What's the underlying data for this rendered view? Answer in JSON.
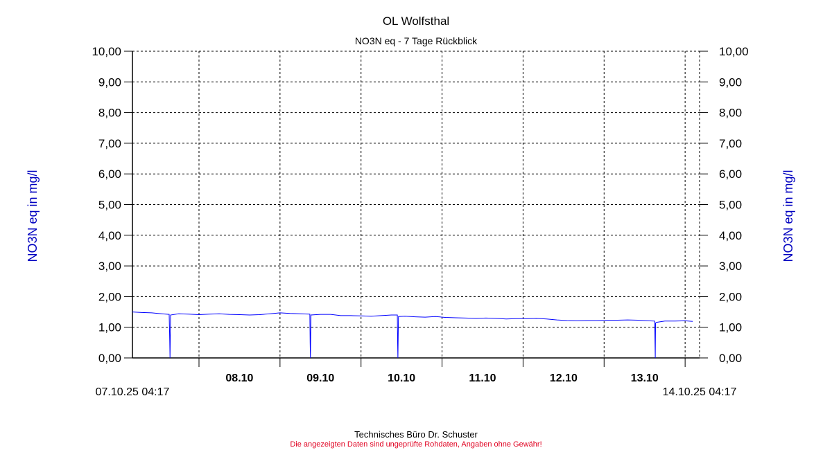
{
  "chart_data": {
    "type": "line",
    "title": "OL Wolfsthal",
    "subtitle": "NO3N eq - 7 Tage Rückblick",
    "ylabel_left": "NO3N eq in mg/l",
    "ylabel_right": "NO3N eq in mg/l",
    "ylim": [
      0,
      10
    ],
    "yticks": [
      "0,00",
      "1,00",
      "2,00",
      "3,00",
      "4,00",
      "5,00",
      "6,00",
      "7,00",
      "8,00",
      "9,00",
      "10,00"
    ],
    "xlim": [
      "2025-10-07T04:17",
      "2025-10-14T04:17"
    ],
    "xlim_labels": [
      "07.10.25 04:17",
      "14.10.25 04:17"
    ],
    "xticks": [
      "08.10",
      "09.10",
      "10.10",
      "11.10",
      "12.10",
      "13.10"
    ],
    "grid": true,
    "line_color": "#0000ff",
    "series": [
      {
        "points": [
          [
            "2025-10-07T04:17",
            1.5
          ],
          [
            "2025-10-07T07:00",
            1.48
          ],
          [
            "2025-10-07T10:00",
            1.47
          ],
          [
            "2025-10-07T13:00",
            1.44
          ],
          [
            "2025-10-07T15:10",
            1.42
          ],
          [
            "2025-10-07T15:20",
            0.55
          ],
          [
            "2025-10-07T15:25",
            0.0
          ],
          [
            "2025-10-07T15:35",
            1.4
          ],
          [
            "2025-10-07T18:00",
            1.44
          ],
          [
            "2025-10-07T21:00",
            1.43
          ],
          [
            "2025-10-08T00:00",
            1.41
          ],
          [
            "2025-10-08T03:00",
            1.43
          ],
          [
            "2025-10-08T06:00",
            1.44
          ],
          [
            "2025-10-08T09:00",
            1.42
          ],
          [
            "2025-10-08T12:00",
            1.41
          ],
          [
            "2025-10-08T15:00",
            1.4
          ],
          [
            "2025-10-08T18:00",
            1.41
          ],
          [
            "2025-10-08T21:00",
            1.44
          ],
          [
            "2025-10-09T00:00",
            1.47
          ],
          [
            "2025-10-09T03:00",
            1.45
          ],
          [
            "2025-10-09T06:00",
            1.44
          ],
          [
            "2025-10-09T08:50",
            1.43
          ],
          [
            "2025-10-09T08:55",
            0.5
          ],
          [
            "2025-10-09T09:00",
            0.0
          ],
          [
            "2025-10-09T09:10",
            1.4
          ],
          [
            "2025-10-09T12:00",
            1.42
          ],
          [
            "2025-10-09T15:00",
            1.42
          ],
          [
            "2025-10-09T18:00",
            1.38
          ],
          [
            "2025-10-09T21:00",
            1.38
          ],
          [
            "2025-10-10T00:00",
            1.37
          ],
          [
            "2025-10-10T03:00",
            1.36
          ],
          [
            "2025-10-10T06:00",
            1.38
          ],
          [
            "2025-10-10T09:00",
            1.4
          ],
          [
            "2025-10-10T10:45",
            1.4
          ],
          [
            "2025-10-10T10:50",
            0.5
          ],
          [
            "2025-10-10T10:55",
            0.0
          ],
          [
            "2025-10-10T11:05",
            1.35
          ],
          [
            "2025-10-10T13:00",
            1.36
          ],
          [
            "2025-10-10T16:00",
            1.34
          ],
          [
            "2025-10-10T19:00",
            1.33
          ],
          [
            "2025-10-10T22:00",
            1.35
          ],
          [
            "2025-10-11T01:00",
            1.32
          ],
          [
            "2025-10-11T04:00",
            1.31
          ],
          [
            "2025-10-11T07:00",
            1.3
          ],
          [
            "2025-10-11T10:00",
            1.29
          ],
          [
            "2025-10-11T13:00",
            1.3
          ],
          [
            "2025-10-11T16:00",
            1.29
          ],
          [
            "2025-10-11T19:00",
            1.27
          ],
          [
            "2025-10-11T22:00",
            1.28
          ],
          [
            "2025-10-12T01:00",
            1.28
          ],
          [
            "2025-10-12T04:00",
            1.29
          ],
          [
            "2025-10-12T07:00",
            1.27
          ],
          [
            "2025-10-12T10:00",
            1.24
          ],
          [
            "2025-10-12T13:00",
            1.22
          ],
          [
            "2025-10-12T16:00",
            1.21
          ],
          [
            "2025-10-12T19:00",
            1.22
          ],
          [
            "2025-10-12T22:00",
            1.22
          ],
          [
            "2025-10-13T01:00",
            1.23
          ],
          [
            "2025-10-13T04:00",
            1.23
          ],
          [
            "2025-10-13T07:00",
            1.24
          ],
          [
            "2025-10-13T10:00",
            1.23
          ],
          [
            "2025-10-13T13:00",
            1.21
          ],
          [
            "2025-10-13T15:00",
            1.2
          ],
          [
            "2025-10-13T15:05",
            0.55
          ],
          [
            "2025-10-13T15:10",
            0.0
          ],
          [
            "2025-10-13T15:15",
            1.14
          ],
          [
            "2025-10-13T15:30",
            1.16
          ],
          [
            "2025-10-13T18:00",
            1.2
          ],
          [
            "2025-10-13T21:00",
            1.2
          ],
          [
            "2025-10-14T00:00",
            1.21
          ],
          [
            "2025-10-14T02:15",
            1.19
          ]
        ]
      }
    ]
  },
  "footer": {
    "company": "Technisches Büro Dr. Schuster",
    "disclaimer": "Die angezeigten Daten sind ungeprüfte Rohdaten, Angaben ohne Gewähr!"
  }
}
